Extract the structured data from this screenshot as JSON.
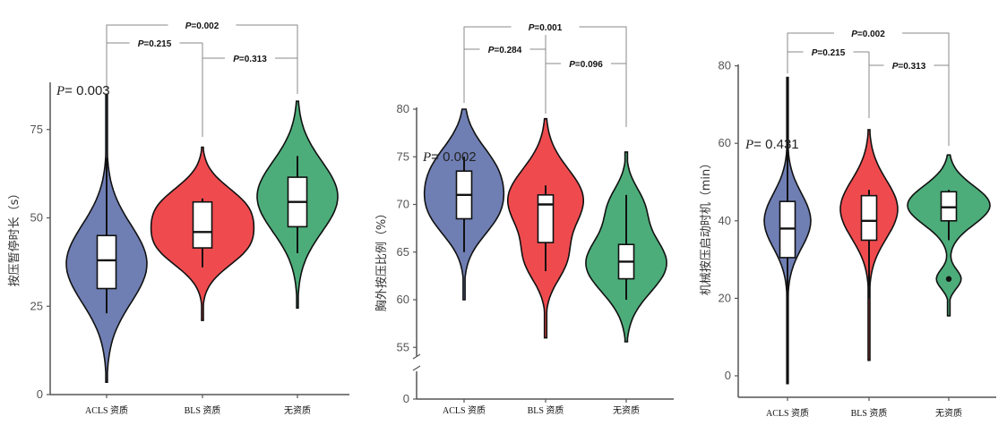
{
  "colors": {
    "ACLS": "#6F7FB4",
    "BLS": "#EF4B4F",
    "none": "#4CAD7A",
    "axis": "#555555",
    "bracket": "#888888"
  },
  "chart_data": [
    {
      "type": "violin",
      "title": "",
      "xlabel": "",
      "ylabel": "按压暂停时长（s）",
      "categories": [
        "ACLS 资质",
        "BLS 资质",
        "无资质"
      ],
      "ylim": [
        0,
        90
      ],
      "yticks": [
        0,
        25,
        50,
        75
      ],
      "ytick_labels": [
        "0",
        "25",
        "50",
        "75"
      ],
      "overall_p": {
        "label": "P",
        "value": "= 0.003"
      },
      "series": [
        {
          "name": "ACLS 资质",
          "violin_range": [
            3.5,
            85
          ],
          "whisker_low": 23,
          "q1": 30,
          "median": 38,
          "q3": 45,
          "whisker_high": 67,
          "outliers": []
        },
        {
          "name": "BLS 资质",
          "violin_range": [
            21,
            70
          ],
          "whisker_low": 36,
          "q1": 41.5,
          "median": 46,
          "q3": 54.5,
          "whisker_high": 55.5,
          "outliers": []
        },
        {
          "name": "无资质",
          "violin_range": [
            24.5,
            83
          ],
          "whisker_low": 40,
          "q1": 47.5,
          "median": 54.5,
          "q3": 61.5,
          "whisker_high": 67.5,
          "outliers": []
        }
      ],
      "comparisons": [
        {
          "groups": [
            0,
            2
          ],
          "label": "P",
          "value": "=0.002"
        },
        {
          "groups": [
            0,
            1
          ],
          "label": "P",
          "value": "=0.215"
        },
        {
          "groups": [
            1,
            2
          ],
          "label": "P",
          "value": "=0.313"
        }
      ]
    },
    {
      "type": "violin",
      "title": "",
      "xlabel": "",
      "ylabel": "胸外按压比例（%）",
      "categories": [
        "ACLS 资质",
        "BLS 资质",
        "无资质"
      ],
      "ylim": [
        53,
        80
      ],
      "axis_break": true,
      "yticks": [
        55,
        60,
        65,
        70,
        75,
        80
      ],
      "ytick_labels": [
        "55",
        "60",
        "65",
        "70",
        "75",
        "80"
      ],
      "zero_label": "0",
      "overall_p": {
        "label": "P",
        "value": "= 0.002"
      },
      "series": [
        {
          "name": "ACLS 资质",
          "violin_range": [
            60,
            80
          ],
          "whisker_low": 65,
          "q1": 68.5,
          "median": 71,
          "q3": 73.5,
          "whisker_high": 75,
          "outliers": []
        },
        {
          "name": "BLS 资质",
          "violin_range": [
            56,
            79
          ],
          "whisker_low": 63,
          "q1": 66,
          "median": 70,
          "q3": 71,
          "whisker_high": 72,
          "outliers": []
        },
        {
          "name": "无资质",
          "violin_range": [
            55.6,
            75.5
          ],
          "whisker_low": 60,
          "q1": 62.2,
          "median": 64,
          "q3": 65.8,
          "whisker_high": 71,
          "outliers": []
        }
      ],
      "comparisons": [
        {
          "groups": [
            0,
            2
          ],
          "label": "P",
          "value": "=0.001"
        },
        {
          "groups": [
            0,
            1
          ],
          "label": "P",
          "value": "=0.284"
        },
        {
          "groups": [
            1,
            2
          ],
          "label": "P",
          "value": "=0.096"
        }
      ]
    },
    {
      "type": "violin",
      "title": "",
      "xlabel": "",
      "ylabel": "机械按压启动时机（min）",
      "categories": [
        "ACLS 资质",
        "BLS 资质",
        "无资质"
      ],
      "ylim": [
        -5,
        80
      ],
      "yticks": [
        0,
        20,
        40,
        60,
        80
      ],
      "ytick_labels": [
        "0",
        "20",
        "40",
        "60",
        "80"
      ],
      "overall_p": {
        "label": "P",
        "value": "= 0.431"
      },
      "series": [
        {
          "name": "ACLS 资质",
          "violin_range": [
            -2,
            77
          ],
          "whisker_low": 15,
          "q1": 30.5,
          "median": 38,
          "q3": 45,
          "whisker_high": 59,
          "outliers": []
        },
        {
          "name": "BLS 资质",
          "violin_range": [
            4,
            63.5
          ],
          "whisker_low": 20,
          "q1": 35,
          "median": 40,
          "q3": 46.5,
          "whisker_high": 48,
          "outliers": []
        },
        {
          "name": "无资质",
          "violin_range": [
            15.5,
            57
          ],
          "whisker_low": 35,
          "q1": 40,
          "median": 43.5,
          "q3": 47.5,
          "whisker_high": 48,
          "outliers": [
            25
          ]
        }
      ],
      "comparisons": [
        {
          "groups": [
            0,
            2
          ],
          "label": "P",
          "value": "=0.002"
        },
        {
          "groups": [
            0,
            1
          ],
          "label": "P",
          "value": "=0.215"
        },
        {
          "groups": [
            1,
            2
          ],
          "label": "P",
          "value": "=0.313"
        }
      ]
    }
  ]
}
